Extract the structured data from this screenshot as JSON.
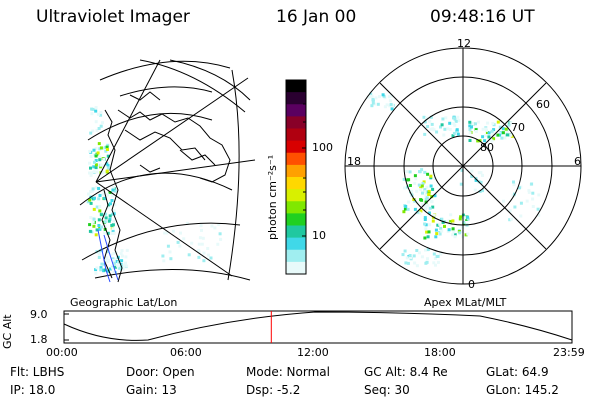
{
  "header": {
    "title": "Ultraviolet Imager",
    "date": "16 Jan 00",
    "time": "09:48:16 UT"
  },
  "geo_panel": {
    "caption": "Geographic Lat/Lon"
  },
  "colorbar": {
    "unit_label": "photon cm⁻²s⁻¹",
    "tick_labels": [
      "100",
      "10"
    ],
    "colors": [
      "#000000",
      "#2a0030",
      "#5a0060",
      "#880028",
      "#b00010",
      "#d80000",
      "#ff5000",
      "#ffa000",
      "#ffd800",
      "#d8f000",
      "#80e800",
      "#20d020",
      "#20c8a0",
      "#40d8e8",
      "#a0eef0",
      "#e8fafa"
    ]
  },
  "polar_panel": {
    "caption": "Apex MLat/MLT",
    "mlt_labels": [
      "12",
      "18",
      "6",
      "0"
    ],
    "mlat_labels": [
      "60",
      "70",
      "80"
    ]
  },
  "altitude_plot": {
    "ylabel": "GC Alt",
    "ytick_labels": [
      "9.0",
      "1.8"
    ],
    "xtick_labels": [
      "00:00",
      "06:00",
      "12:00",
      "18:00",
      "23:59"
    ],
    "current_time_fraction": 0.408,
    "marker_color": "#ff0000"
  },
  "info": {
    "row1": {
      "filter": "Flt: LBHS",
      "door": "Door: Open",
      "mode": "Mode: Normal",
      "gc_alt": "GC Alt: 8.4 Re",
      "glat": "GLat:  64.9"
    },
    "row2": {
      "ip": "IP: 18.0",
      "gain": "Gain: 13",
      "dsp": "Dsp:    -5.2",
      "seq": "Seq: 30",
      "glon": "GLon: 145.2"
    }
  }
}
